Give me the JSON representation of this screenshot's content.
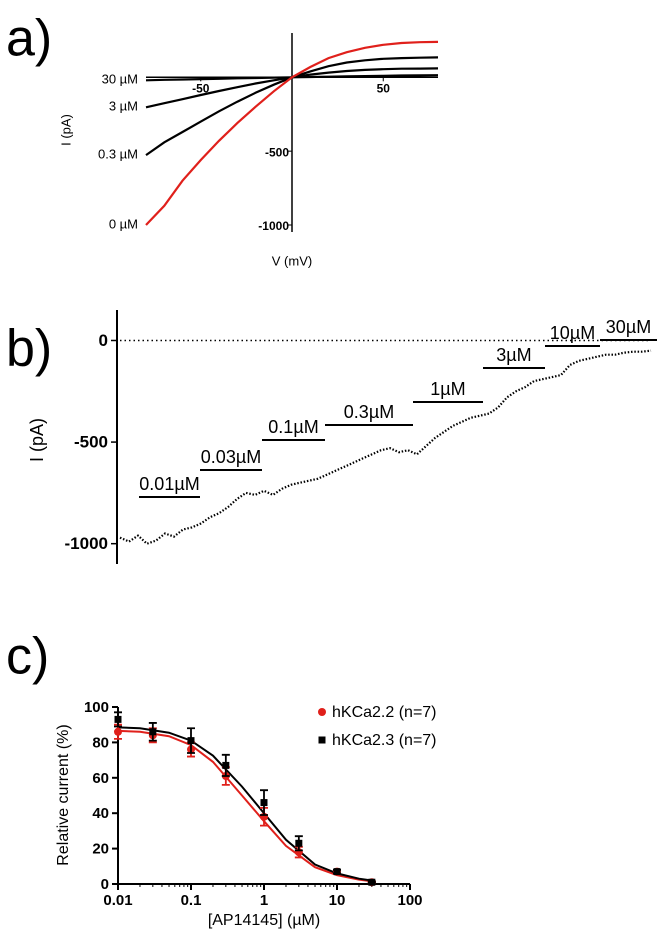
{
  "chart_data": [
    {
      "type": "line",
      "label": "a)",
      "xlabel": "V (mV)",
      "ylabel": "I (pA)",
      "xlim": [
        -80,
        80
      ],
      "ylim": [
        -1000,
        300
      ],
      "xticks": [
        -50,
        50
      ],
      "yticks": [
        -500,
        -1000
      ],
      "x": [
        -80,
        -70,
        -60,
        -50,
        -40,
        -30,
        -20,
        -10,
        0,
        10,
        20,
        30,
        40,
        50,
        60,
        70,
        80
      ],
      "series": [
        {
          "name": "30 µM",
          "color": "#000000",
          "values": [
            -20,
            -17,
            -15,
            -12,
            -10,
            -7,
            -5,
            -2,
            0,
            2,
            4,
            6,
            8,
            10,
            12,
            13,
            14
          ]
        },
        {
          "name": "3 µM",
          "color": "#000000",
          "values": [
            -203,
            -175,
            -148,
            -120,
            -93,
            -67,
            -42,
            -20,
            0,
            18,
            32,
            43,
            50,
            55,
            58,
            59,
            60
          ]
        },
        {
          "name": "0.3 µM",
          "color": "#000000",
          "values": [
            -527,
            -440,
            -370,
            -300,
            -230,
            -165,
            -105,
            -50,
            0,
            40,
            75,
            100,
            115,
            125,
            130,
            133,
            135
          ]
        },
        {
          "name": "0 µM",
          "color": "#e0201b",
          "values": [
            -1000,
            -870,
            -700,
            -560,
            -430,
            -310,
            -200,
            -95,
            0,
            70,
            130,
            170,
            200,
            220,
            232,
            238,
            240
          ]
        }
      ]
    },
    {
      "type": "trace",
      "label": "b)",
      "ylabel": "I (pA)",
      "ylim": [
        -1100,
        150
      ],
      "yticks": [
        0,
        -500,
        -1000
      ],
      "zero_line": true,
      "color": "#000000",
      "values": [
        -970,
        -990,
        -960,
        -1000,
        -985,
        -950,
        -965,
        -930,
        -920,
        -900,
        -870,
        -850,
        -820,
        -780,
        -750,
        -760,
        -740,
        -760,
        -730,
        -710,
        -700,
        -690,
        -680,
        -660,
        -640,
        -620,
        -600,
        -580,
        -560,
        -540,
        -530,
        -550,
        -540,
        -560,
        -520,
        -480,
        -450,
        -420,
        -400,
        -380,
        -370,
        -360,
        -330,
        -280,
        -250,
        -230,
        -200,
        -190,
        -180,
        -170,
        -120,
        -100,
        -90,
        -80,
        -70,
        -70,
        -60,
        -55,
        -55,
        -50
      ],
      "annotations": [
        "0.01µM",
        "0.03µM",
        "0.1µM",
        "0.3µM",
        "1µM",
        "3µM",
        "10µM",
        "30µM"
      ]
    },
    {
      "type": "scatter",
      "label": "c)",
      "xlabel": "[AP14145] (µM)",
      "ylabel": "Relative current (%)",
      "xscale": "log",
      "xlim": [
        0.01,
        100
      ],
      "xticks": [
        0.01,
        0.1,
        1,
        10,
        100
      ],
      "ylim": [
        0,
        100
      ],
      "yticks": [
        0,
        20,
        40,
        60,
        80,
        100
      ],
      "legend": "top-right",
      "x": [
        0.01,
        0.03,
        0.1,
        0.3,
        1,
        3,
        10,
        30
      ],
      "fit_x": [
        0.01,
        0.02,
        0.05,
        0.1,
        0.2,
        0.5,
        1,
        2,
        5,
        10,
        20,
        30
      ],
      "series": [
        {
          "name": "hKCa2.2 (n=7)",
          "color": "#e0201b",
          "marker": "circle",
          "values": [
            86,
            84,
            76,
            61,
            38,
            18,
            7,
            1
          ],
          "errors": [
            4,
            4,
            4,
            5,
            5,
            3,
            1,
            0.5
          ],
          "fit_values": [
            86.5,
            86,
            83.5,
            78.5,
            69,
            50,
            35.5,
            21.5,
            9.5,
            5,
            2.5,
            1.5
          ]
        },
        {
          "name": "hKCa2.3 (n=7)",
          "color": "#000000",
          "marker": "square",
          "values": [
            93,
            86,
            81,
            67,
            46,
            23,
            7,
            1
          ],
          "errors": [
            4,
            5,
            7,
            6,
            7,
            4,
            1,
            0.5
          ],
          "fit_values": [
            88.5,
            88,
            85.5,
            81,
            72.5,
            55,
            40,
            25,
            11,
            6,
            3,
            2
          ]
        }
      ]
    }
  ]
}
